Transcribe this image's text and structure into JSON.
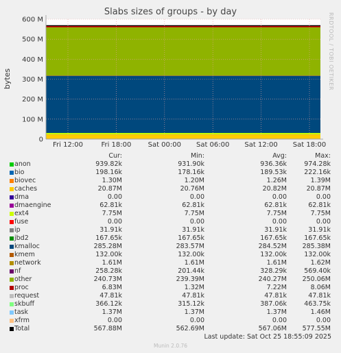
{
  "chart_data": {
    "type": "area",
    "title": "Slabs sizes of groups - by day",
    "ylabel": "bytes",
    "ylim": [
      0,
      600000000
    ],
    "yticks": [
      {
        "value": 0,
        "label": "0"
      },
      {
        "value": 100000000,
        "label": "100 M"
      },
      {
        "value": 200000000,
        "label": "200 M"
      },
      {
        "value": 300000000,
        "label": "300 M"
      },
      {
        "value": 400000000,
        "label": "400 M"
      },
      {
        "value": 500000000,
        "label": "500 M"
      },
      {
        "value": 600000000,
        "label": "600 M"
      }
    ],
    "xticks": [
      "Fri 12:00",
      "Fri 18:00",
      "Sat 00:00",
      "Sat 06:00",
      "Sat 12:00",
      "Sat 18:00"
    ],
    "grid": true,
    "stacked": true,
    "series": [
      {
        "name": "anon",
        "color": "#00cc00",
        "value": 939820
      },
      {
        "name": "bio",
        "color": "#0066b3",
        "value": 198160
      },
      {
        "name": "biovec",
        "color": "#ff8000",
        "value": 1300000
      },
      {
        "name": "caches",
        "color": "#ffcc00",
        "value": 20870000
      },
      {
        "name": "dma",
        "color": "#330099",
        "value": 0
      },
      {
        "name": "dmaengine",
        "color": "#990099",
        "value": 62810
      },
      {
        "name": "ext4",
        "color": "#ccff00",
        "value": 7750000
      },
      {
        "name": "fuse",
        "color": "#ff0000",
        "value": 0
      },
      {
        "name": "ip",
        "color": "#808080",
        "value": 31910
      },
      {
        "name": "jbd2",
        "color": "#008f00",
        "value": 167650
      },
      {
        "name": "kmalloc",
        "color": "#00487d",
        "value": 285280000
      },
      {
        "name": "kmem",
        "color": "#b35a00",
        "value": 132000
      },
      {
        "name": "network",
        "color": "#b38f00",
        "value": 1610000
      },
      {
        "name": "nf",
        "color": "#6b006b",
        "value": 258280
      },
      {
        "name": "other",
        "color": "#8fb300",
        "value": 240730000
      },
      {
        "name": "proc",
        "color": "#b30000",
        "value": 6830000
      },
      {
        "name": "request",
        "color": "#bebebe",
        "value": 47810
      },
      {
        "name": "skbuff",
        "color": "#80ff80",
        "value": 366120
      },
      {
        "name": "task",
        "color": "#80c9ff",
        "value": 1370000
      },
      {
        "name": "xfrm",
        "color": "#ffc080",
        "value": 0
      },
      {
        "name": "Total",
        "color": "#000000",
        "value": 567880000
      }
    ]
  },
  "legend": {
    "headers": {
      "cur": "Cur:",
      "min": "Min:",
      "avg": "Avg:",
      "max": "Max:"
    },
    "rows": [
      {
        "name": "anon",
        "color": "#00cc00",
        "cur": "939.82k",
        "min": "931.90k",
        "avg": "936.36k",
        "max": "974.28k"
      },
      {
        "name": "bio",
        "color": "#0066b3",
        "cur": "198.16k",
        "min": "178.16k",
        "avg": "189.53k",
        "max": "222.16k"
      },
      {
        "name": "biovec",
        "color": "#ff8000",
        "cur": "1.30M",
        "min": "1.20M",
        "avg": "1.26M",
        "max": "1.39M"
      },
      {
        "name": "caches",
        "color": "#ffcc00",
        "cur": "20.87M",
        "min": "20.76M",
        "avg": "20.82M",
        "max": "20.87M"
      },
      {
        "name": "dma",
        "color": "#330099",
        "cur": "0.00",
        "min": "0.00",
        "avg": "0.00",
        "max": "0.00"
      },
      {
        "name": "dmaengine",
        "color": "#990099",
        "cur": "62.81k",
        "min": "62.81k",
        "avg": "62.81k",
        "max": "62.81k"
      },
      {
        "name": "ext4",
        "color": "#ccff00",
        "cur": "7.75M",
        "min": "7.75M",
        "avg": "7.75M",
        "max": "7.75M"
      },
      {
        "name": "fuse",
        "color": "#ff0000",
        "cur": "0.00",
        "min": "0.00",
        "avg": "0.00",
        "max": "0.00"
      },
      {
        "name": "ip",
        "color": "#808080",
        "cur": "31.91k",
        "min": "31.91k",
        "avg": "31.91k",
        "max": "31.91k"
      },
      {
        "name": "jbd2",
        "color": "#008f00",
        "cur": "167.65k",
        "min": "167.65k",
        "avg": "167.65k",
        "max": "167.65k"
      },
      {
        "name": "kmalloc",
        "color": "#00487d",
        "cur": "285.28M",
        "min": "283.57M",
        "avg": "284.52M",
        "max": "285.38M"
      },
      {
        "name": "kmem",
        "color": "#b35a00",
        "cur": "132.00k",
        "min": "132.00k",
        "avg": "132.00k",
        "max": "132.00k"
      },
      {
        "name": "network",
        "color": "#b38f00",
        "cur": "1.61M",
        "min": "1.61M",
        "avg": "1.61M",
        "max": "1.62M"
      },
      {
        "name": "nf",
        "color": "#6b006b",
        "cur": "258.28k",
        "min": "201.44k",
        "avg": "328.29k",
        "max": "569.40k"
      },
      {
        "name": "other",
        "color": "#8fb300",
        "cur": "240.73M",
        "min": "239.39M",
        "avg": "240.27M",
        "max": "250.06M"
      },
      {
        "name": "proc",
        "color": "#b30000",
        "cur": "6.83M",
        "min": "1.32M",
        "avg": "7.22M",
        "max": "8.06M"
      },
      {
        "name": "request",
        "color": "#bebebe",
        "cur": "47.81k",
        "min": "47.81k",
        "avg": "47.81k",
        "max": "47.81k"
      },
      {
        "name": "skbuff",
        "color": "#80ff80",
        "cur": "366.12k",
        "min": "315.12k",
        "avg": "387.06k",
        "max": "463.75k"
      },
      {
        "name": "task",
        "color": "#80c9ff",
        "cur": "1.37M",
        "min": "1.37M",
        "avg": "1.37M",
        "max": "1.46M"
      },
      {
        "name": "xfrm",
        "color": "#ffc080",
        "cur": "0.00",
        "min": "0.00",
        "avg": "0.00",
        "max": "0.00"
      },
      {
        "name": "Total",
        "color": "#000000",
        "cur": "567.88M",
        "min": "562.69M",
        "avg": "567.06M",
        "max": "577.55M"
      }
    ]
  },
  "last_update": "Last update: Sat Oct 25 18:55:09 2025",
  "watermark": "RRDTOOL / TOBI OETIKER",
  "footer": "Munin 2.0.76"
}
